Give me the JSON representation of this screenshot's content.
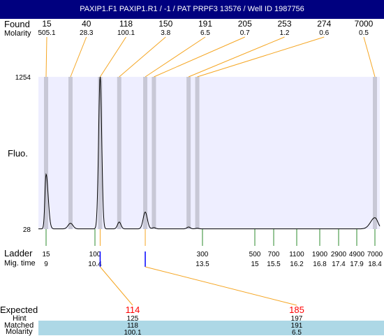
{
  "title": "PAXIP1.F1  PAXIP1.R1 / -1 / PAT PRPF3 13576 / Well ID 1987756",
  "labels": {
    "found": "Found",
    "molarity": "Molarity",
    "fluo": "Fluo.",
    "ladder": "Ladder",
    "mig_time": "Mig. time",
    "expected": "Expected",
    "hint": "Hint",
    "matched": "Matched",
    "molarity_bottom": "Molarity"
  },
  "colors": {
    "title_bg": "#00007f",
    "plot_bg": "#eeeeff",
    "peak_band": "#c8c8d6",
    "orange": "#f5a623",
    "ladder_green": "#2e8b2e",
    "marker_blue": "#0000ff",
    "expected_red": "#ff0000",
    "matched_band": "#add8e6"
  },
  "chart_data": {
    "type": "line",
    "y_axis": {
      "ticks": [
        "1254",
        "28"
      ],
      "range": [
        28,
        1254
      ]
    },
    "found_peaks": [
      {
        "size": "15",
        "molarity": "505.1",
        "mig_time": 9.0
      },
      {
        "size": "40",
        "molarity": "28.3",
        "mig_time": 9.7
      },
      {
        "size": "118",
        "molarity": "100.1",
        "mig_time": 10.55
      },
      {
        "size": "150",
        "molarity": "3.8",
        "mig_time": 11.1
      },
      {
        "size": "191",
        "molarity": "6.5",
        "mig_time": 11.85
      },
      {
        "size": "205",
        "molarity": "0.7",
        "mig_time": 12.1
      },
      {
        "size": "253",
        "molarity": "1.2",
        "mig_time": 13.1
      },
      {
        "size": "274",
        "molarity": "0.6",
        "mig_time": 13.35
      },
      {
        "size": "7000",
        "molarity": "0.5",
        "mig_time": 18.4
      }
    ],
    "ladder": [
      {
        "size": "15",
        "mig_time": "9"
      },
      {
        "size": "100",
        "mig_time": "10.4"
      },
      {
        "size": "300",
        "mig_time": "13.5"
      },
      {
        "size": "500",
        "mig_time": "15"
      },
      {
        "size": "700",
        "mig_time": "15.5"
      },
      {
        "size": "1100",
        "mig_time": "16.2"
      },
      {
        "size": "1900",
        "mig_time": "16.8"
      },
      {
        "size": "2900",
        "mig_time": "17.4"
      },
      {
        "size": "4900",
        "mig_time": "17.9"
      },
      {
        "size": "7000",
        "mig_time": "18.4"
      }
    ],
    "expected": [
      {
        "expected": "114",
        "hint": "125",
        "matched": "118",
        "molarity": "100.1",
        "mig_time": 10.55
      },
      {
        "expected": "185",
        "hint": "197",
        "matched": "191",
        "molarity": "6.5",
        "mig_time": 11.85
      }
    ],
    "trace": {
      "baseline": 30,
      "peaks": [
        {
          "mig_time": 9.0,
          "height": 470,
          "width": 0.06
        },
        {
          "mig_time": 9.7,
          "height": 75,
          "width": 0.07
        },
        {
          "mig_time": 10.55,
          "height": 1254,
          "width": 0.045
        },
        {
          "mig_time": 11.1,
          "height": 85,
          "width": 0.05
        },
        {
          "mig_time": 11.85,
          "height": 165,
          "width": 0.06
        },
        {
          "mig_time": 12.1,
          "height": 40,
          "width": 0.05
        },
        {
          "mig_time": 13.1,
          "height": 45,
          "width": 0.05
        },
        {
          "mig_time": 13.35,
          "height": 35,
          "width": 0.05
        },
        {
          "mig_time": 18.4,
          "height": 120,
          "width": 0.12
        }
      ]
    }
  }
}
